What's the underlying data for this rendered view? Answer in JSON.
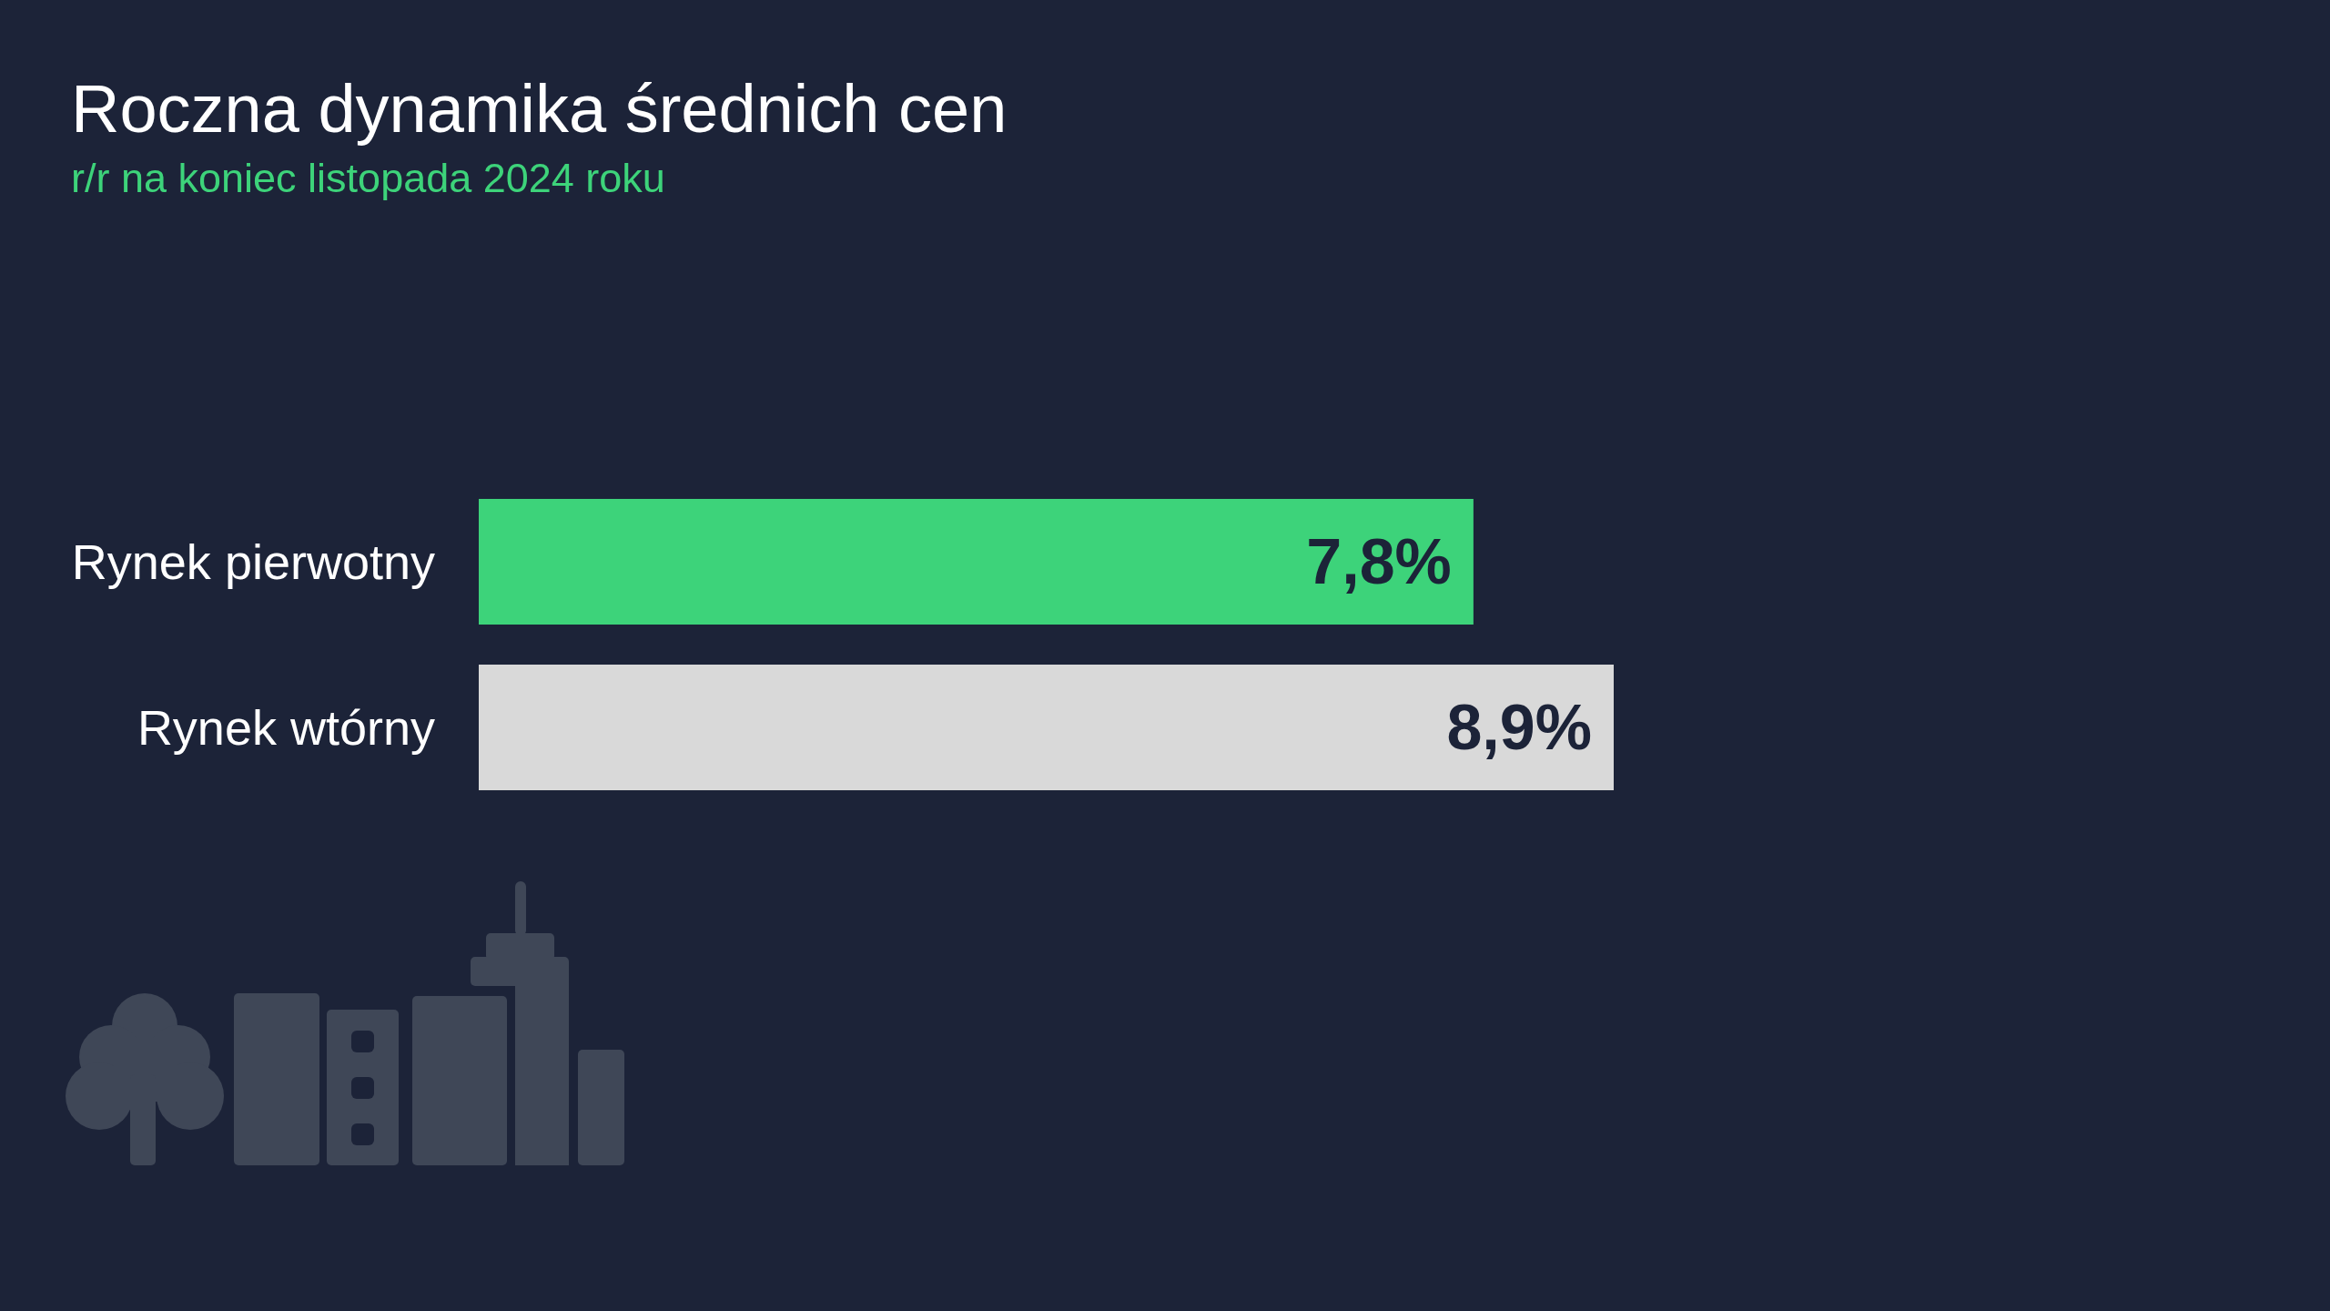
{
  "chart_data": {
    "type": "bar",
    "orientation": "horizontal",
    "title": "Roczna dynamika średnich cen",
    "subtitle": "r/r na koniec listopada 2024 roku",
    "categories": [
      "Rynek pierwotny",
      "Rynek wtórny"
    ],
    "values": [
      7.8,
      8.9
    ],
    "colors": [
      "#3dd37a",
      "#d9d9d9"
    ],
    "value_labels": [
      "7,8%",
      "8,9%"
    ],
    "tick_labels": "y"
  }
}
